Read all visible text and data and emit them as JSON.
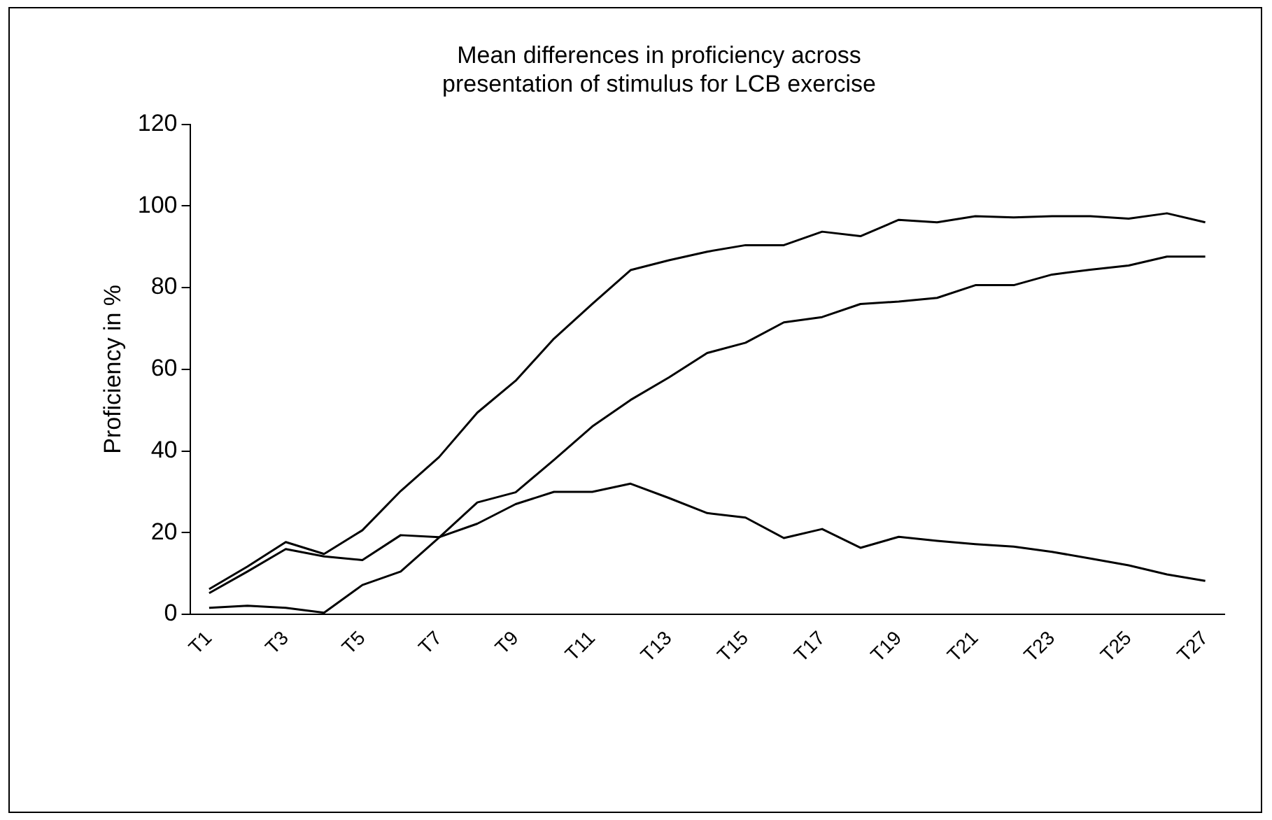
{
  "chart_data": {
    "type": "line",
    "title": "Mean differences in proficiency across\npresentation of stimulus for LCB exercise",
    "ylabel": "Proficiency in %",
    "categories": [
      "T1",
      null,
      "T3",
      null,
      "T5",
      null,
      "T7",
      null,
      "T9",
      null,
      "T11",
      null,
      "T13",
      null,
      "T15",
      null,
      "T17",
      null,
      "T19",
      null,
      "T21",
      null,
      "T23",
      null,
      "T25",
      null,
      "T27"
    ],
    "series": [
      {
        "color": "#000000",
        "values": [
          6.2,
          11.7,
          17.7,
          14.8,
          20.6,
          30.2,
          38.5,
          49.4,
          57.2,
          67.5,
          76,
          84.3,
          86.7,
          88.8,
          90.4,
          90.4,
          93.7,
          92.6,
          96.6,
          96,
          97.5,
          97.2,
          97.5,
          97.5,
          96.9,
          98.2,
          96
        ]
      },
      {
        "color": "#000000",
        "values": [
          1.6,
          2.1,
          1.6,
          0.4,
          7.2,
          10.5,
          18.8,
          27.4,
          29.9,
          37.8,
          46,
          52.5,
          58,
          64,
          66.5,
          71.5,
          72.8,
          76,
          76.6,
          77.5,
          80.6,
          80.6,
          83.2,
          84.4,
          85.4,
          87.6,
          87.6
        ]
      },
      {
        "color": "#000000",
        "values": [
          5.2,
          10.5,
          16,
          14.2,
          13.3,
          19.4,
          18.9,
          22.2,
          27,
          30,
          30,
          32,
          28.5,
          24.8,
          23.7,
          18.7,
          20.9,
          16.3,
          19,
          18,
          17.2,
          16.6,
          15.3,
          13.7,
          12,
          9.8,
          8.2
        ]
      }
    ],
    "ylim": [
      0,
      120
    ],
    "yticks": [
      0,
      20,
      40,
      60,
      80,
      100,
      120
    ],
    "grid": false,
    "legend": false,
    "marker": "none",
    "line_style": "solid"
  }
}
